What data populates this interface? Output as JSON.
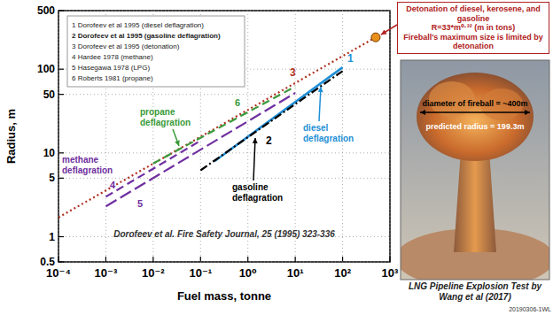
{
  "chart_data": {
    "type": "line",
    "log": true,
    "grid": true,
    "legend": "upper left",
    "xlabel": "Fuel mass, tonne",
    "ylabel": "Radius, m",
    "xlim": [
      0.0001,
      1000
    ],
    "ylim": [
      0.5,
      500
    ],
    "xticks": [
      {
        "value": 0.0001,
        "label": "10⁻⁴"
      },
      {
        "value": 0.001,
        "label": "10⁻³"
      },
      {
        "value": 0.01,
        "label": "10⁻²"
      },
      {
        "value": 0.1,
        "label": "10⁻¹"
      },
      {
        "value": 1,
        "label": "10⁰"
      },
      {
        "value": 10,
        "label": "10¹"
      },
      {
        "value": 100,
        "label": "10²"
      },
      {
        "value": 1000,
        "label": "10³"
      }
    ],
    "yticks": [
      0.5,
      1,
      5,
      10,
      50,
      100,
      500
    ],
    "series": [
      {
        "name": "1 Dorofeev et al 1995 (diesel deflagration)",
        "color": "#1f8fd6",
        "line_style": "solid",
        "x": [
          0.2,
          100
        ],
        "values": [
          8,
          105
        ]
      },
      {
        "name": "2 Dorofeev et al 1995 (gasoline deflagration)",
        "color": "#000000",
        "line_style": "dash-dot",
        "x": [
          0.1,
          100
        ],
        "values": [
          6.2,
          95
        ]
      },
      {
        "name": "3 Dorofeev et al 1995 (detonation)",
        "color": "#b03020",
        "line_style": "dotted",
        "x": [
          0.0001,
          500
        ],
        "values": [
          1.7,
          240
        ]
      },
      {
        "name": "4 Hardee 1978 (methane)",
        "color": "#7030a0",
        "line_style": "dashed",
        "x": [
          0.001,
          0.1
        ],
        "values": [
          3,
          14
        ]
      },
      {
        "name": "5 Hasegawa 1978 (LPG)",
        "color": "#7030a0",
        "line_style": "long-dash",
        "x": [
          0.001,
          10
        ],
        "values": [
          2.3,
          52
        ]
      },
      {
        "name": "6 Roberts 1981 (propane)",
        "color": "#3a9a3a",
        "line_style": "dashed",
        "x": [
          0.01,
          10
        ],
        "values": [
          7.5,
          62
        ]
      },
      {
        "type": "scatter",
        "marker": "circle",
        "color": "#e8901a",
        "x": [
          500
        ],
        "values": [
          240
        ]
      }
    ],
    "annotations": [
      "methane deflagration",
      "propane deflagration",
      "gasoline deflagration",
      "diesel deflagration",
      "Dorofeev et al. Fire Safety Journal, 25 (1995) 323-336",
      "1",
      "2",
      "3",
      "4",
      "5",
      "6",
      "Detonation of diesel, kerosene, and gasoline",
      "R=33*m⁰·³² (m in tons)",
      "Fireball's maximum size is limited by detonation",
      "diameter of fireball = ~400m",
      "predicted radius = 199.3m",
      "LNG Pipeline Explosion Test by Wang et al (2017)",
      "20190306-1WL"
    ]
  }
}
